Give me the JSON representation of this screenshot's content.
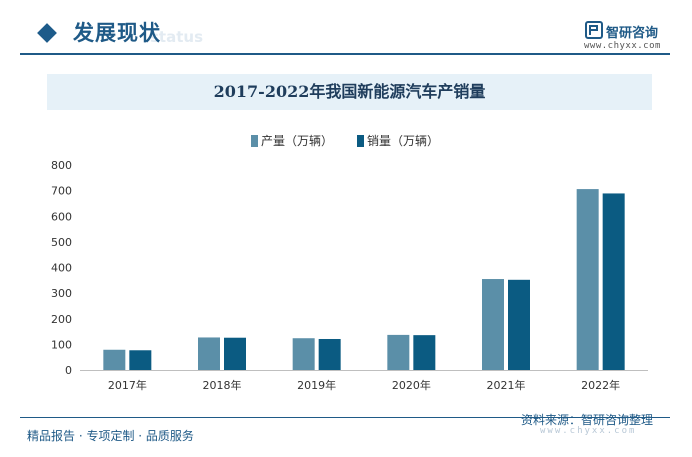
{
  "header": {
    "section_title": "发展现状",
    "section_subtitle": "status",
    "brand_name": "智研咨询",
    "brand_url": "www.chyxx.com"
  },
  "colors": {
    "production": "#5b8fa8",
    "sales": "#0b5b82",
    "brand": "#1f5a87"
  },
  "chart_data": {
    "type": "bar",
    "title": "2017-2022年我国新能源汽车产销量",
    "categories": [
      "2017年",
      "2018年",
      "2019年",
      "2020年",
      "2021年",
      "2022年"
    ],
    "series": [
      {
        "name": "产量（万辆）",
        "values": [
          79,
          127,
          124,
          137,
          355,
          706
        ]
      },
      {
        "name": "销量（万辆）",
        "values": [
          77,
          126,
          121,
          136,
          352,
          689
        ]
      }
    ],
    "ylim": [
      0,
      800
    ],
    "yticks": [
      0,
      100,
      200,
      300,
      400,
      500,
      600,
      700,
      800
    ],
    "grid": false,
    "legend_position": "top-center"
  },
  "footer": {
    "left_text": "精品报告 · 专项定制 · 品质服务",
    "source": "资料来源：智研咨询整理",
    "source_url": "www.chyxx.com"
  }
}
